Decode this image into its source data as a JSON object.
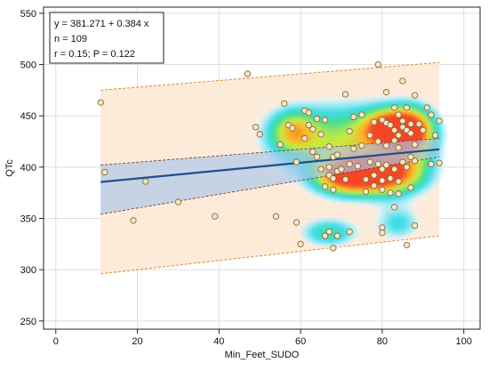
{
  "chart_data": {
    "type": "scatter",
    "xlabel": "Min_Feet_SUDO",
    "ylabel": "QTc",
    "xlim": [
      -3,
      104
    ],
    "ylim": [
      242,
      556
    ],
    "x_ticks": [
      0,
      20,
      40,
      60,
      80,
      100
    ],
    "y_ticks": [
      250,
      300,
      350,
      400,
      450,
      500,
      550
    ],
    "x_tick_labels": [
      "0",
      "20",
      "40",
      "60",
      "80",
      "100"
    ],
    "y_tick_labels": [
      "250",
      "300",
      "350",
      "400",
      "450",
      "500",
      "550"
    ],
    "grid": true,
    "legend_position": "top-left",
    "stats_box": {
      "equation": "y = 381.271 + 0.384 x",
      "n": "n = 109",
      "r_p": "r = 0.15; P = 0.122"
    },
    "regression": {
      "intercept": 381.271,
      "slope": 0.384,
      "x_range": [
        11,
        94
      ]
    },
    "confidence_band": {
      "x": [
        11,
        94
      ],
      "lower": [
        354,
        410
      ],
      "upper": [
        402,
        428
      ]
    },
    "prediction_band": {
      "x": [
        11,
        94
      ],
      "lower": [
        296,
        333
      ],
      "upper": [
        475,
        502
      ]
    },
    "heat_blobs": [
      {
        "x": 70,
        "y": 425,
        "sx": 12,
        "sy": 26,
        "w": 0.6
      },
      {
        "x": 83,
        "y": 438,
        "sx": 5,
        "sy": 13,
        "w": 1.0
      },
      {
        "x": 80,
        "y": 392,
        "sx": 7,
        "sy": 14,
        "w": 1.0
      },
      {
        "x": 70,
        "y": 390,
        "sx": 5,
        "sy": 12,
        "w": 0.6
      },
      {
        "x": 88,
        "y": 430,
        "sx": 4,
        "sy": 20,
        "w": 0.55
      },
      {
        "x": 67,
        "y": 336,
        "sx": 5,
        "sy": 10,
        "w": 0.45
      },
      {
        "x": 84,
        "y": 345,
        "sx": 4,
        "sy": 12,
        "w": 0.35
      },
      {
        "x": 58,
        "y": 435,
        "sx": 4,
        "sy": 14,
        "w": 0.5
      }
    ],
    "colors": {
      "regression_line": "#1f4e8c",
      "confidence_fill": "#a9c6ea",
      "prediction_fill": "#fbe7d2",
      "prediction_line": "#e08a2a",
      "point_fill": "#f3e6c9",
      "point_stroke": "#8a6a2e",
      "grid": "#dedede"
    },
    "points": [
      [
        11,
        463
      ],
      [
        12,
        395
      ],
      [
        19,
        348
      ],
      [
        22,
        386
      ],
      [
        30,
        366
      ],
      [
        39,
        352
      ],
      [
        47,
        491
      ],
      [
        49,
        439
      ],
      [
        50,
        432
      ],
      [
        54,
        352
      ],
      [
        55,
        422
      ],
      [
        56,
        462
      ],
      [
        57,
        441
      ],
      [
        58,
        438
      ],
      [
        59,
        405
      ],
      [
        59,
        346
      ],
      [
        60,
        325
      ],
      [
        61,
        455
      ],
      [
        61,
        428
      ],
      [
        62,
        453
      ],
      [
        62,
        441
      ],
      [
        63,
        415
      ],
      [
        63,
        437
      ],
      [
        64,
        410
      ],
      [
        64,
        447
      ],
      [
        65,
        432
      ],
      [
        65,
        398
      ],
      [
        66,
        446
      ],
      [
        66,
        381
      ],
      [
        66,
        333
      ],
      [
        67,
        420
      ],
      [
        67,
        400
      ],
      [
        67,
        392
      ],
      [
        67,
        337
      ],
      [
        68,
        410
      ],
      [
        68,
        389
      ],
      [
        68,
        378
      ],
      [
        68,
        321
      ],
      [
        69,
        412
      ],
      [
        69,
        396
      ],
      [
        69,
        333
      ],
      [
        70,
        398
      ],
      [
        71,
        388
      ],
      [
        71,
        471
      ],
      [
        72,
        435
      ],
      [
        72,
        403
      ],
      [
        72,
        337
      ],
      [
        73,
        449
      ],
      [
        73,
        418
      ],
      [
        74,
        401
      ],
      [
        75,
        451
      ],
      [
        75,
        421
      ],
      [
        76,
        388
      ],
      [
        76,
        376
      ],
      [
        77,
        405
      ],
      [
        77,
        431
      ],
      [
        78,
        444
      ],
      [
        78,
        392
      ],
      [
        78,
        382
      ],
      [
        79,
        500
      ],
      [
        79,
        425
      ],
      [
        79,
        403
      ],
      [
        80,
        446
      ],
      [
        80,
        398
      ],
      [
        80,
        387
      ],
      [
        80,
        378
      ],
      [
        80,
        341
      ],
      [
        80,
        336
      ],
      [
        81,
        473
      ],
      [
        81,
        443
      ],
      [
        81,
        421
      ],
      [
        81,
        402
      ],
      [
        82,
        441
      ],
      [
        82,
        389
      ],
      [
        82,
        375
      ],
      [
        83,
        458
      ],
      [
        83,
        436
      ],
      [
        83,
        426
      ],
      [
        83,
        398
      ],
      [
        83,
        361
      ],
      [
        84,
        451
      ],
      [
        84,
        431
      ],
      [
        84,
        419
      ],
      [
        84,
        386
      ],
      [
        84,
        374
      ],
      [
        85,
        484
      ],
      [
        85,
        445
      ],
      [
        85,
        439
      ],
      [
        85,
        405
      ],
      [
        86,
        458
      ],
      [
        86,
        436
      ],
      [
        86,
        324
      ],
      [
        86,
        400
      ],
      [
        87,
        442
      ],
      [
        87,
        433
      ],
      [
        87,
        410
      ],
      [
        87,
        380
      ],
      [
        88,
        470
      ],
      [
        88,
        422
      ],
      [
        88,
        406
      ],
      [
        88,
        343
      ],
      [
        89,
        442
      ],
      [
        90,
        436
      ],
      [
        91,
        458
      ],
      [
        92,
        451
      ],
      [
        92,
        403
      ],
      [
        93,
        431
      ],
      [
        94,
        445
      ],
      [
        94,
        404
      ]
    ]
  }
}
